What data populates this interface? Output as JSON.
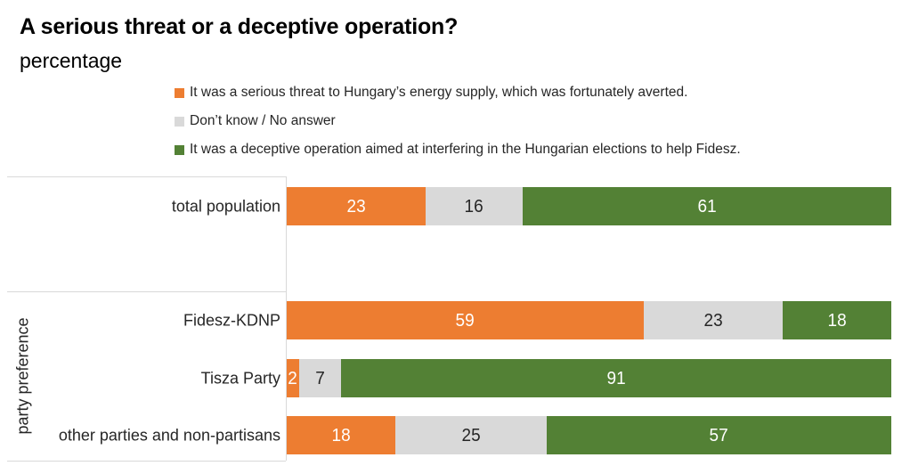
{
  "header": {
    "title": "A serious threat or a deceptive operation?",
    "subtitle": "percentage"
  },
  "legend": [
    {
      "label": "It was a serious threat to Hungary’s energy supply, which was fortunately averted.",
      "color": "#ED7D31"
    },
    {
      "label": "Don’t know / No answer",
      "color": "#D9D9D9"
    },
    {
      "label": "It was a deceptive operation aimed at interfering in the Hungarian elections to help Fidesz.",
      "color": "#538135"
    }
  ],
  "chart_data": {
    "type": "bar",
    "orientation": "horizontal",
    "stacked": true,
    "x_max": 100,
    "grid": false,
    "legend_position": "top",
    "title": "A serious threat or a deceptive operation?",
    "subtitle": "percentage",
    "group_label": "party preference",
    "categories": [
      "total population",
      "Fidesz-KDNP",
      "Tisza Party",
      "other parties and non-partisans"
    ],
    "category_groups": [
      "",
      "party preference",
      "party preference",
      "party preference"
    ],
    "series": [
      {
        "name": "It was a serious threat to Hungary’s energy supply, which was fortunately averted.",
        "color": "#ED7D31",
        "label_color": "#FFFFFF",
        "values": [
          23,
          59,
          2,
          18
        ]
      },
      {
        "name": "Don’t know / No answer",
        "color": "#D9D9D9",
        "label_color": "#262626",
        "values": [
          16,
          23,
          7,
          25
        ]
      },
      {
        "name": "It was a deceptive operation aimed at interfering in the Hungarian elections to help Fidesz.",
        "color": "#538135",
        "label_color": "#FFFFFF",
        "values": [
          61,
          18,
          91,
          57
        ]
      }
    ],
    "axis_color": "#D9D9D9"
  }
}
